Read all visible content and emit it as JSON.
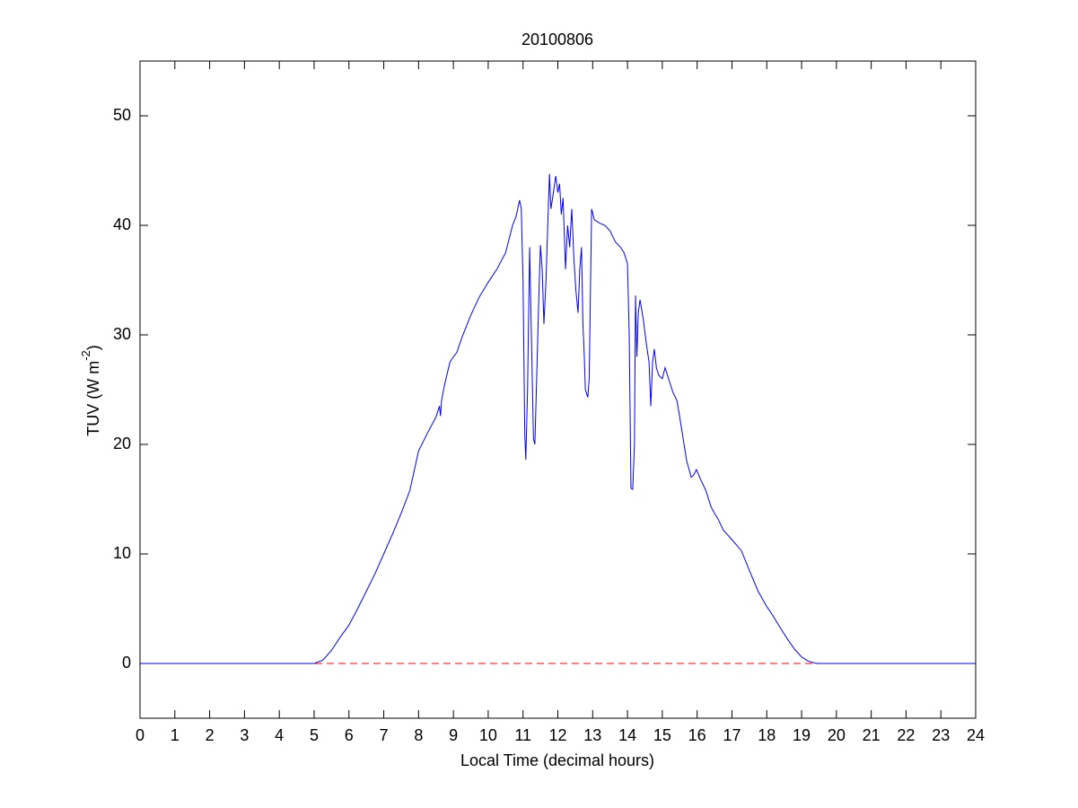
{
  "chart_data": {
    "type": "line",
    "title": "20100806",
    "xlabel": "Local Time (decimal hours)",
    "ylabel": [
      "TUV (W m",
      "-2",
      ")"
    ],
    "x": [
      0,
      5,
      5.25,
      5.5,
      5.75,
      6,
      6.25,
      6.5,
      6.75,
      7,
      7.25,
      7.5,
      7.75,
      8,
      8.25,
      8.5,
      8.6,
      8.63,
      8.66,
      8.75,
      8.9,
      9,
      9.1,
      9.25,
      9.5,
      9.75,
      10,
      10.25,
      10.5,
      10.7,
      10.8,
      10.9,
      10.95,
      11.0,
      11.05,
      11.08,
      11.13,
      11.19,
      11.24,
      11.3,
      11.34,
      11.4,
      11.45,
      11.5,
      11.55,
      11.6,
      11.66,
      11.72,
      11.76,
      11.8,
      11.85,
      11.94,
      12.0,
      12.05,
      12.1,
      12.15,
      12.22,
      12.28,
      12.34,
      12.4,
      12.46,
      12.52,
      12.58,
      12.63,
      12.68,
      12.72,
      12.76,
      12.79,
      12.86,
      12.9,
      12.97,
      13.05,
      13.2,
      13.35,
      13.5,
      13.65,
      13.8,
      13.9,
      14.0,
      14.05,
      14.1,
      14.15,
      14.2,
      14.23,
      14.27,
      14.31,
      14.36,
      14.45,
      14.55,
      14.62,
      14.67,
      14.72,
      14.77,
      14.83,
      14.9,
      15.0,
      15.08,
      15.2,
      15.3,
      15.42,
      15.5,
      15.6,
      15.7,
      15.83,
      15.9,
      15.98,
      16.1,
      16.25,
      16.4,
      16.5,
      16.6,
      16.75,
      17.0,
      17.27,
      17.5,
      17.75,
      18.0,
      18.15,
      18.4,
      18.6,
      18.8,
      19.0,
      19.2,
      19.4,
      19.5,
      24
    ],
    "series": [
      {
        "color": "#0000ff",
        "values": [
          0,
          0,
          0.3,
          1.2,
          2.4,
          3.5,
          5.0,
          6.6,
          8.2,
          10.0,
          11.8,
          13.7,
          15.8,
          19.4,
          21,
          22.5,
          23.5,
          22.6,
          24,
          25.5,
          27.5,
          28,
          28.4,
          29.8,
          31.8,
          33.5,
          34.8,
          36,
          37.5,
          40,
          40.8,
          42.3,
          41.5,
          35,
          21,
          18.6,
          25,
          38,
          30,
          20.5,
          20,
          27,
          33,
          38.2,
          36,
          31,
          35,
          41,
          44.7,
          41.5,
          42.5,
          44.5,
          43,
          43.8,
          41,
          42.5,
          36,
          40,
          38,
          41.5,
          37,
          34,
          32,
          36,
          38,
          31,
          28,
          25,
          24.3,
          26,
          41.5,
          40.5,
          40.2,
          40,
          39.5,
          38.5,
          38,
          37.5,
          36.5,
          30,
          16,
          15.9,
          20,
          33.6,
          28,
          32,
          33.2,
          31.5,
          29,
          27.5,
          23.5,
          27.5,
          28.7,
          27,
          26.3,
          26,
          27,
          25.8,
          24.8,
          24,
          22.5,
          20.5,
          18.5,
          17,
          17.2,
          17.7,
          16.8,
          15.8,
          14.3,
          13.7,
          13.2,
          12.2,
          11.3,
          10.3,
          8.5,
          6.6,
          5.2,
          4.5,
          3.2,
          2.2,
          1.3,
          0.6,
          0.2,
          0.02,
          0,
          0
        ]
      }
    ],
    "hline": {
      "value": 0,
      "color": "#ff0000",
      "style": "dashed"
    },
    "xlim": [
      0,
      24
    ],
    "xticks": [
      0,
      1,
      2,
      3,
      4,
      5,
      6,
      7,
      8,
      9,
      10,
      11,
      12,
      13,
      14,
      15,
      16,
      17,
      18,
      19,
      20,
      21,
      22,
      23,
      24
    ],
    "ylim": [
      -5,
      55
    ],
    "yticks": [
      0,
      10,
      20,
      30,
      40,
      50
    ],
    "grid": false
  }
}
